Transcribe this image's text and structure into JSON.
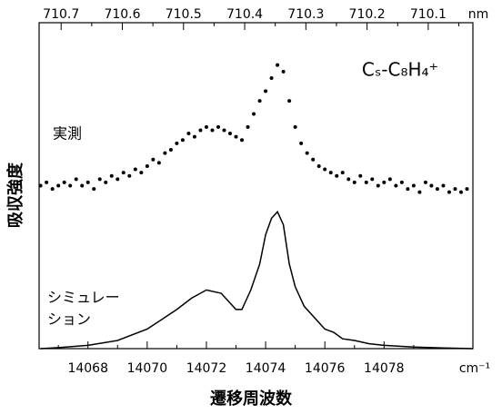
{
  "chart_data": {
    "type": "spectrum",
    "label": "Cₛ-C₈H₄⁺",
    "xlabel": "遷移周波数",
    "ylabel": "吸収強度",
    "x_unit": "cm⁻¹",
    "x2_unit": "nm",
    "xlim": [
      14066.35,
      14081
    ],
    "xticks": [
      14068,
      14070,
      14072,
      14074,
      14076,
      14078
    ],
    "xminorticks": [
      14067,
      14069,
      14071,
      14073,
      14075,
      14077,
      14079,
      14081
    ],
    "x2lim": [
      710.736,
      710.027
    ],
    "x2ticks": [
      710.7,
      710.6,
      710.5,
      710.4,
      710.3,
      710.2,
      710.1
    ],
    "x2minorticks": [
      710.65,
      710.55,
      710.45,
      710.35,
      710.25,
      710.15,
      710.05
    ],
    "ylim": [
      0,
      1
    ],
    "series": [
      {
        "name": "実測",
        "kind": "scatter",
        "color": "#000000",
        "x": [
          14066.4,
          14066.6,
          14066.8,
          14067.0,
          14067.2,
          14067.4,
          14067.6,
          14067.8,
          14068.0,
          14068.2,
          14068.4,
          14068.6,
          14068.8,
          14069.0,
          14069.2,
          14069.4,
          14069.6,
          14069.8,
          14070.0,
          14070.2,
          14070.4,
          14070.6,
          14070.8,
          14071.0,
          14071.2,
          14071.4,
          14071.6,
          14071.8,
          14072.0,
          14072.2,
          14072.4,
          14072.6,
          14072.8,
          14073.0,
          14073.2,
          14073.4,
          14073.6,
          14073.8,
          14074.0,
          14074.2,
          14074.4,
          14074.6,
          14074.8,
          14075.0,
          14075.2,
          14075.4,
          14075.6,
          14075.8,
          14076.0,
          14076.2,
          14076.4,
          14076.6,
          14076.8,
          14077.0,
          14077.2,
          14077.4,
          14077.6,
          14077.8,
          14078.0,
          14078.2,
          14078.4,
          14078.6,
          14078.8,
          14079.0,
          14079.2,
          14079.4,
          14079.6,
          14079.8,
          14080.0,
          14080.2,
          14080.4,
          14080.6,
          14080.8
        ],
        "values": [
          0.5,
          0.51,
          0.49,
          0.5,
          0.51,
          0.5,
          0.52,
          0.5,
          0.51,
          0.49,
          0.52,
          0.51,
          0.53,
          0.52,
          0.54,
          0.53,
          0.55,
          0.54,
          0.56,
          0.58,
          0.57,
          0.6,
          0.61,
          0.63,
          0.64,
          0.66,
          0.65,
          0.67,
          0.68,
          0.67,
          0.68,
          0.67,
          0.66,
          0.65,
          0.64,
          0.68,
          0.72,
          0.76,
          0.79,
          0.83,
          0.87,
          0.85,
          0.76,
          0.68,
          0.63,
          0.6,
          0.58,
          0.56,
          0.55,
          0.54,
          0.53,
          0.54,
          0.52,
          0.51,
          0.53,
          0.51,
          0.52,
          0.5,
          0.51,
          0.52,
          0.5,
          0.51,
          0.49,
          0.5,
          0.48,
          0.51,
          0.5,
          0.49,
          0.5,
          0.48,
          0.49,
          0.48,
          0.49
        ]
      },
      {
        "name": "シミュレーション",
        "kind": "line",
        "color": "#000000",
        "x": [
          14066.4,
          14067,
          14068,
          14069,
          14070,
          14070.5,
          14071,
          14071.5,
          14072,
          14072.5,
          14073,
          14073.2,
          14073.5,
          14073.8,
          14074,
          14074.2,
          14074.4,
          14074.6,
          14074.8,
          14075,
          14075.3,
          14075.6,
          14076,
          14076.3,
          14076.6,
          14077,
          14077.5,
          14078,
          14079,
          14080,
          14081
        ],
        "values": [
          0,
          0.003,
          0.01,
          0.025,
          0.06,
          0.09,
          0.12,
          0.155,
          0.18,
          0.17,
          0.12,
          0.12,
          0.18,
          0.26,
          0.35,
          0.4,
          0.42,
          0.38,
          0.26,
          0.19,
          0.13,
          0.1,
          0.06,
          0.05,
          0.03,
          0.025,
          0.015,
          0.01,
          0.005,
          0.002,
          0
        ]
      }
    ]
  }
}
